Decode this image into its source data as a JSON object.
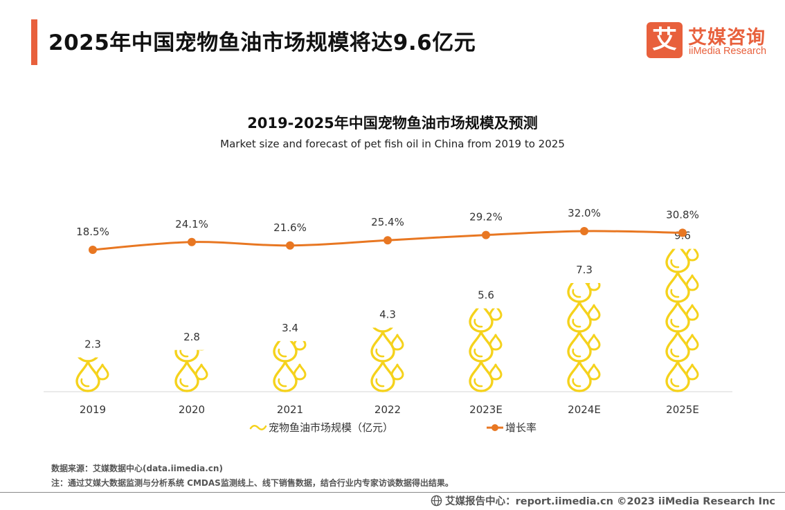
{
  "header": {
    "title": "2025年中国宠物鱼油市场规模将达9.6亿元"
  },
  "logo": {
    "mark": "艾",
    "cn_name": "艾媒咨询",
    "en_name": "iiMedia Research"
  },
  "colors": {
    "accent": "#E8603C",
    "line": "#E87722",
    "drop": "#F5D21C"
  },
  "chart_data": {
    "type": "bar",
    "title": "2019-2025年中国宠物鱼油市场规模及预测",
    "subtitle": "Market size and forecast of pet fish oil in China from 2019 to 2025",
    "categories": [
      "2019",
      "2020",
      "2021",
      "2022",
      "2023E",
      "2024E",
      "2025E"
    ],
    "series": [
      {
        "name": "宠物鱼油市场规模（亿元）",
        "type": "pictorial-bar",
        "icon": "oil-drop-icon",
        "values": [
          2.3,
          2.8,
          3.4,
          4.3,
          5.6,
          7.3,
          9.6
        ]
      },
      {
        "name": "增长率",
        "type": "line",
        "values": [
          18.5,
          24.1,
          21.6,
          25.4,
          29.2,
          32.0,
          30.8
        ],
        "labels": [
          "18.5%",
          "24.1%",
          "21.6%",
          "25.4%",
          "29.2%",
          "32.0%",
          "30.8%"
        ]
      }
    ],
    "legend": "bottom-center",
    "grid": false
  },
  "footer": {
    "source": "数据来源：艾媒数据中心(data.iimedia.cn)",
    "note": "注：通过艾媒大数据监测与分析系统 CMDAS监测线上、线下销售数据，结合行业内专家访谈数据得出结果。",
    "brand": "艾媒报告中心：report.iimedia.cn  ©2023  iiMedia Research Inc"
  }
}
